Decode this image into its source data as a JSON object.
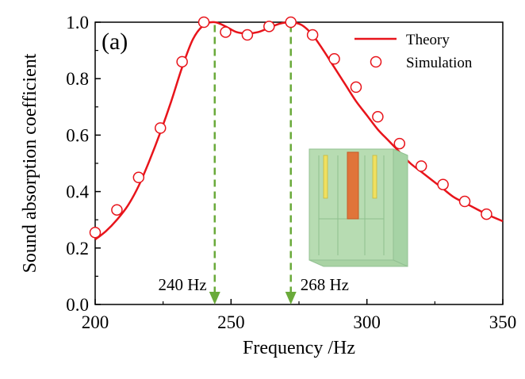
{
  "chart_data": {
    "type": "line",
    "panel_label": "(a)",
    "xlabel": "Frequency /Hz",
    "ylabel": "Sound absorption coefficient",
    "xlim": [
      200,
      350
    ],
    "ylim": [
      0.0,
      1.0
    ],
    "xticks": [
      200,
      250,
      300,
      350
    ],
    "yticks": [
      0.0,
      0.2,
      0.4,
      0.6,
      0.8,
      1.0
    ],
    "xtick_labels": [
      "200",
      "250",
      "300",
      "350"
    ],
    "ytick_labels": [
      "0.0",
      "0.2",
      "0.4",
      "0.6",
      "0.8",
      "1.0"
    ],
    "series": [
      {
        "name": "Theory",
        "style": "line",
        "color": "#e8141b",
        "x": [
          200,
          204,
          208,
          212,
          216,
          220,
          224,
          228,
          232,
          236,
          240,
          244,
          248,
          252,
          256,
          260,
          264,
          268,
          272,
          276,
          280,
          284,
          288,
          292,
          296,
          300,
          304,
          308,
          312,
          316,
          320,
          324,
          328,
          332,
          336,
          340,
          344,
          350
        ],
        "y": [
          0.23,
          0.26,
          0.3,
          0.35,
          0.42,
          0.51,
          0.61,
          0.72,
          0.84,
          0.94,
          0.99,
          1.0,
          0.985,
          0.965,
          0.96,
          0.965,
          0.98,
          0.995,
          1.0,
          0.99,
          0.955,
          0.9,
          0.84,
          0.78,
          0.72,
          0.67,
          0.62,
          0.58,
          0.54,
          0.5,
          0.47,
          0.44,
          0.41,
          0.38,
          0.36,
          0.34,
          0.32,
          0.295
        ]
      },
      {
        "name": "Simulation",
        "style": "markers",
        "color": "#e8141b",
        "x": [
          200,
          208,
          216,
          224,
          232,
          240,
          248,
          256,
          264,
          272,
          280,
          288,
          296,
          304,
          312,
          320,
          328,
          336,
          344
        ],
        "y": [
          0.255,
          0.335,
          0.45,
          0.625,
          0.86,
          1.0,
          0.965,
          0.955,
          0.985,
          1.0,
          0.955,
          0.87,
          0.77,
          0.665,
          0.57,
          0.49,
          0.425,
          0.365,
          0.32
        ]
      }
    ],
    "annotations": [
      {
        "text": "240 Hz",
        "x": 244,
        "type": "dashed-arrow",
        "color": "#6aaa3a"
      },
      {
        "text": "268 Hz",
        "x": 272,
        "type": "dashed-arrow",
        "color": "#6aaa3a"
      }
    ],
    "legend": {
      "position": "top-right",
      "entries": [
        "Theory",
        "Simulation"
      ]
    },
    "grid": false
  }
}
